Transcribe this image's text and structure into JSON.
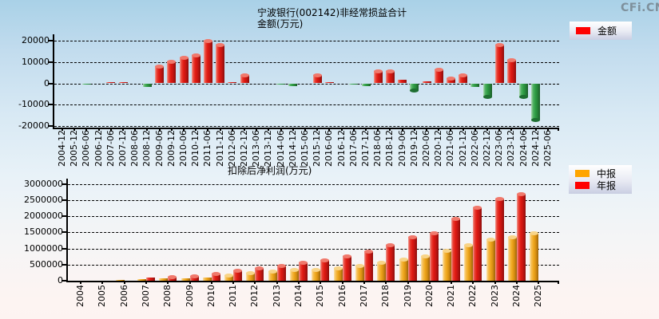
{
  "logo": "CFi.CN",
  "chart_data": [
    {
      "type": "bar",
      "title": "宁波银行(002142)非经常损益合计",
      "subtitle": "金额(万元)",
      "legend": [
        {
          "label": "金额",
          "color": "#ff0000"
        }
      ],
      "legend_position": "top-right",
      "grid": true,
      "ylim": [
        -20000,
        20000
      ],
      "yticks": [
        20000,
        10000,
        0,
        -10000,
        -20000
      ],
      "positive_color": "#e01a12",
      "negative_color": "#2f9e45",
      "categories": [
        "2004-12",
        "2005-12",
        "2006-06",
        "2006-12",
        "2007-06",
        "2007-12",
        "2008-06",
        "2008-12",
        "2009-06",
        "2009-12",
        "2010-06",
        "2010-12",
        "2011-06",
        "2011-12",
        "2012-06",
        "2012-12",
        "2013-06",
        "2013-12",
        "2014-06",
        "2014-12",
        "2015-06",
        "2015-12",
        "2016-06",
        "2016-12",
        "2017-06",
        "2017-12",
        "2018-06",
        "2018-12",
        "2019-06",
        "2019-12",
        "2020-06",
        "2020-12",
        "2021-06",
        "2021-12",
        "2022-06",
        "2022-12",
        "2023-06",
        "2023-12",
        "2024-06",
        "2024-12",
        "2025-06"
      ],
      "values": [
        50,
        80,
        -400,
        100,
        400,
        450,
        -300,
        -1800,
        8200,
        10200,
        12300,
        13400,
        19800,
        18200,
        400,
        4100,
        -300,
        -300,
        -600,
        -1400,
        80,
        3750,
        600,
        -200,
        -400,
        -1300,
        5600,
        5600,
        1600,
        -3500,
        1000,
        6500,
        2600,
        4000,
        -1500,
        -6400,
        18100,
        11000,
        -6400,
        -17200,
        null
      ]
    },
    {
      "type": "bar",
      "title": "扣除后净利润(万元)",
      "legend": [
        {
          "label": "中报",
          "color": "#ffa500"
        },
        {
          "label": "年报",
          "color": "#ff0000"
        }
      ],
      "legend_position": "top-right",
      "grid": true,
      "ylim": [
        0,
        3000000
      ],
      "yticks": [
        3000000,
        2500000,
        2000000,
        1500000,
        1000000,
        500000,
        0
      ],
      "categories": [
        "2004",
        "2005",
        "2006",
        "2007",
        "2008",
        "2009",
        "2010",
        "2011",
        "2012",
        "2013",
        "2014",
        "2015",
        "2016",
        "2017",
        "2018",
        "2019",
        "2020",
        "2021",
        "2022",
        "2023",
        "2024",
        "2025"
      ],
      "series": [
        {
          "name": "中报",
          "color": "#ffa500",
          "values": [
            null,
            null,
            30000,
            43000,
            75000,
            70000,
            110000,
            170000,
            240000,
            289000,
            335000,
            349000,
            389000,
            466000,
            557000,
            675000,
            766000,
            932000,
            1119000,
            1287000,
            1357000,
            1477000
          ]
        },
        {
          "name": "年报",
          "color": "#ff0000",
          "values": [
            null,
            null,
            null,
            95000,
            132000,
            145000,
            232000,
            324000,
            401000,
            477000,
            557000,
            645000,
            774000,
            926000,
            1108000,
            1360000,
            1486000,
            1931000,
            2281000,
            2541000,
            2709000,
            null
          ]
        }
      ]
    }
  ]
}
